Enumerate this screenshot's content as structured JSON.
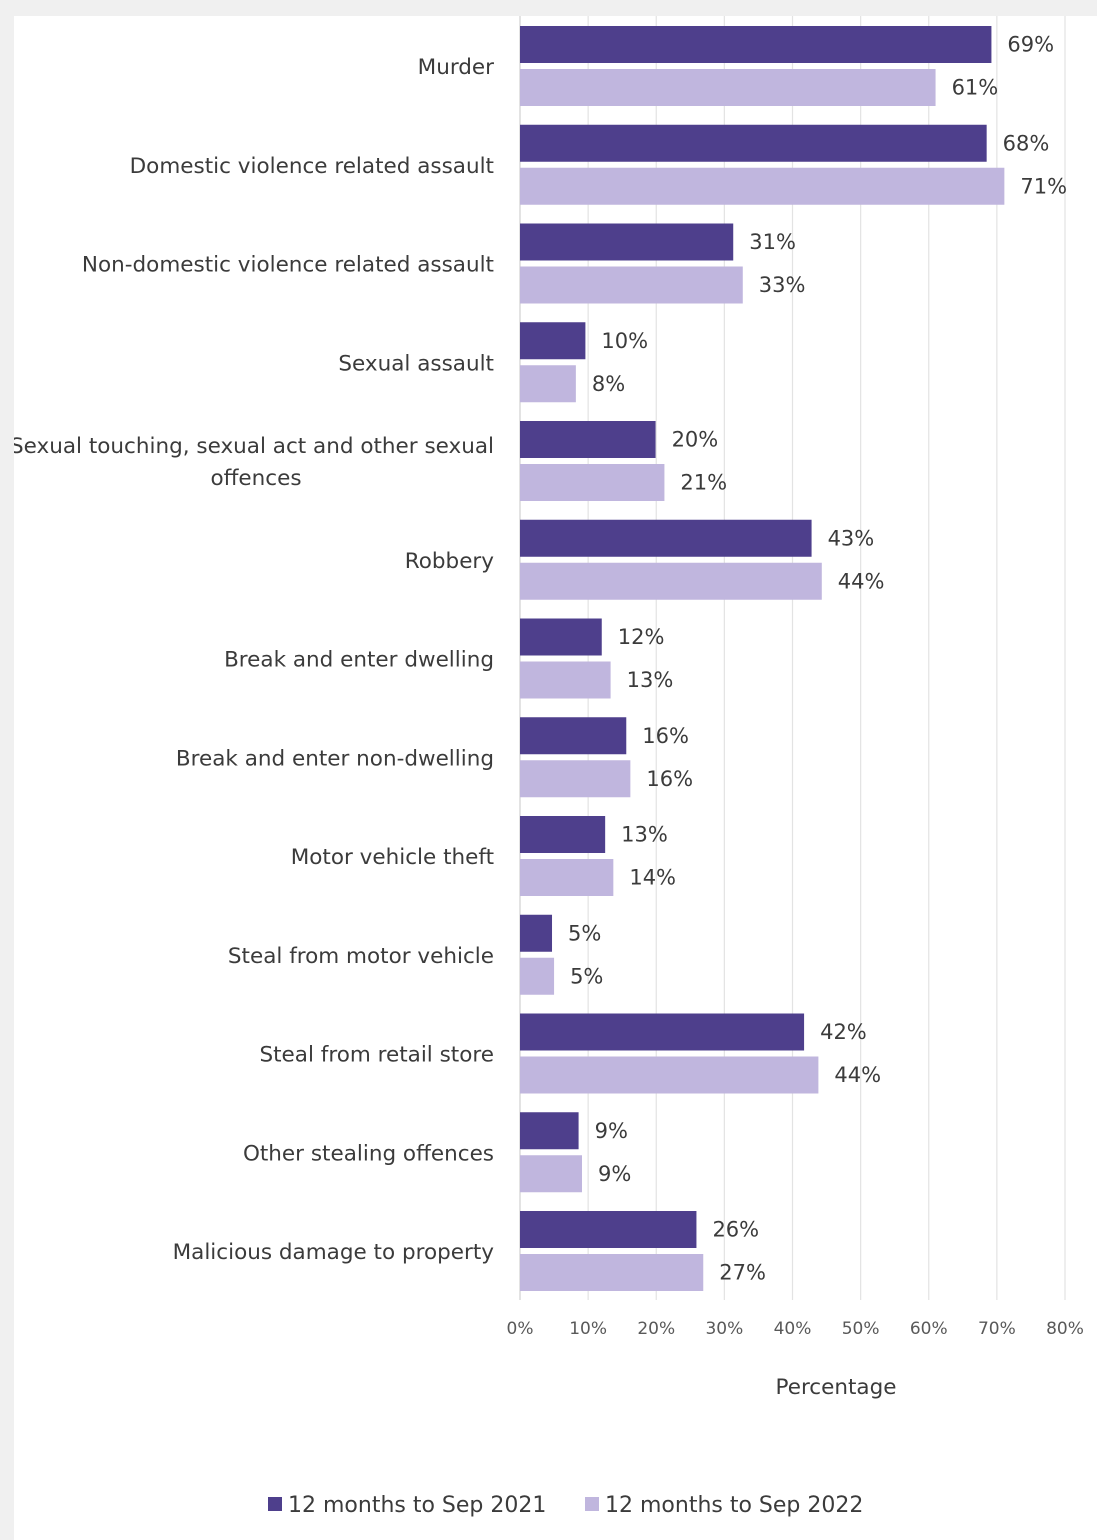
{
  "chart_data": {
    "type": "bar",
    "orientation": "horizontal",
    "categories": [
      "Murder",
      "Domestic violence related assault",
      "Non-domestic violence related assault",
      "Sexual assault",
      "Sexual touching, sexual act and other sexual offences",
      "Robbery",
      "Break and enter dwelling",
      "Break and enter non-dwelling",
      "Motor vehicle theft",
      "Steal from motor vehicle",
      "Steal from retail store",
      "Other stealing offences",
      "Malicious damage to property"
    ],
    "category_label_lines": [
      [
        "Murder"
      ],
      [
        "Domestic violence related assault"
      ],
      [
        "Non-domestic violence related assault"
      ],
      [
        "Sexual assault"
      ],
      [
        "Sexual touching, sexual act and other sexual",
        "offences"
      ],
      [
        "Robbery"
      ],
      [
        "Break and enter dwelling"
      ],
      [
        "Break and enter non-dwelling"
      ],
      [
        "Motor vehicle theft"
      ],
      [
        "Steal from motor vehicle"
      ],
      [
        "Steal from retail store"
      ],
      [
        "Other stealing offences"
      ],
      [
        "Malicious damage to property"
      ]
    ],
    "series": [
      {
        "name": "12 months to Sep 2021",
        "color": "#4e3f8c",
        "values": [
          69.2,
          68.5,
          31.3,
          9.6,
          19.9,
          42.8,
          12.0,
          15.6,
          12.5,
          4.7,
          41.7,
          8.6,
          25.9
        ],
        "labels": [
          "69%",
          "68%",
          "31%",
          "10%",
          "20%",
          "43%",
          "12%",
          "16%",
          "13%",
          "5%",
          "42%",
          "9%",
          "26%"
        ]
      },
      {
        "name": "12 months to Sep 2022",
        "color": "#c0b6de",
        "values": [
          61.0,
          71.1,
          32.7,
          8.2,
          21.2,
          44.3,
          13.3,
          16.2,
          13.7,
          5.0,
          43.8,
          9.1,
          26.9
        ],
        "labels": [
          "61%",
          "71%",
          "33%",
          "8%",
          "21%",
          "44%",
          "13%",
          "16%",
          "14%",
          "5%",
          "44%",
          "9%",
          "27%"
        ]
      }
    ],
    "xlim": [
      0,
      80
    ],
    "xticks": [
      0,
      10,
      20,
      30,
      40,
      50,
      60,
      70,
      80
    ],
    "xtick_labels": [
      "0%",
      "10%",
      "20%",
      "30%",
      "40%",
      "50%",
      "60%",
      "70%",
      "80%"
    ],
    "xlabel": "Percentage",
    "grid": true,
    "legend_position": "bottom"
  }
}
